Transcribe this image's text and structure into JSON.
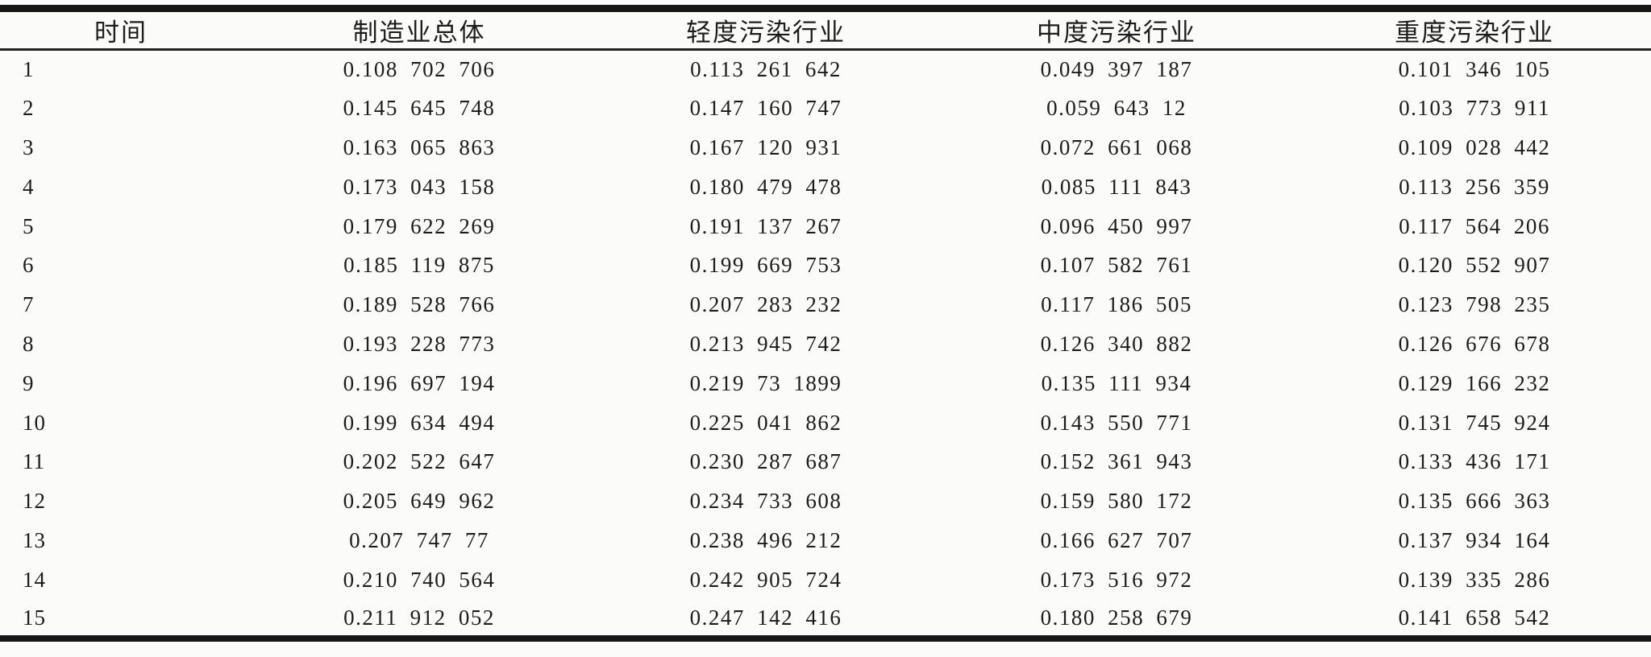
{
  "table": {
    "columns": [
      {
        "label": "时间"
      },
      {
        "label": "制造业总体"
      },
      {
        "label": "轻度污染行业"
      },
      {
        "label": "中度污染行业"
      },
      {
        "label": "重度污染行业"
      }
    ],
    "rows": [
      [
        "1",
        "0.108 702 706",
        "0.113 261 642",
        "0.049 397 187",
        "0.101 346 105"
      ],
      [
        "2",
        "0.145 645 748",
        "0.147 160 747",
        "0.059 643 12",
        "0.103 773 911"
      ],
      [
        "3",
        "0.163 065 863",
        "0.167 120 931",
        "0.072 661 068",
        "0.109 028 442"
      ],
      [
        "4",
        "0.173 043 158",
        "0.180 479 478",
        "0.085 111 843",
        "0.113 256 359"
      ],
      [
        "5",
        "0.179 622 269",
        "0.191 137 267",
        "0.096 450 997",
        "0.117 564 206"
      ],
      [
        "6",
        "0.185 119 875",
        "0.199 669 753",
        "0.107 582 761",
        "0.120 552 907"
      ],
      [
        "7",
        "0.189 528 766",
        "0.207 283 232",
        "0.117 186 505",
        "0.123 798 235"
      ],
      [
        "8",
        "0.193 228 773",
        "0.213 945 742",
        "0.126 340 882",
        "0.126 676 678"
      ],
      [
        "9",
        "0.196 697 194",
        "0.219 73 1899",
        "0.135 111 934",
        "0.129 166 232"
      ],
      [
        "10",
        "0.199 634 494",
        "0.225 041 862",
        "0.143 550 771",
        "0.131 745 924"
      ],
      [
        "11",
        "0.202 522 647",
        "0.230 287 687",
        "0.152 361 943",
        "0.133 436 171"
      ],
      [
        "12",
        "0.205 649 962",
        "0.234 733 608",
        "0.159 580 172",
        "0.135 666 363"
      ],
      [
        "13",
        "0.207 747 77",
        "0.238 496 212",
        "0.166 627 707",
        "0.137 934 164"
      ],
      [
        "14",
        "0.210 740 564",
        "0.242 905 724",
        "0.173 516 972",
        "0.139 335 286"
      ],
      [
        "15",
        "0.211 912 052",
        "0.247 142 416",
        "0.180 258 679",
        "0.141 658 542"
      ]
    ]
  },
  "chart_data": {
    "type": "table",
    "title": "",
    "xlabel": "时间",
    "categories": [
      1,
      2,
      3,
      4,
      5,
      6,
      7,
      8,
      9,
      10,
      11,
      12,
      13,
      14,
      15
    ],
    "series": [
      {
        "name": "制造业总体",
        "values": [
          0.108702706,
          0.145645748,
          0.163065863,
          0.173043158,
          0.179622269,
          0.185119875,
          0.189528766,
          0.193228773,
          0.196697194,
          0.199634494,
          0.202522647,
          0.205649962,
          0.20774777,
          0.210740564,
          0.211912052
        ]
      },
      {
        "name": "轻度污染行业",
        "values": [
          0.113261642,
          0.147160747,
          0.167120931,
          0.180479478,
          0.191137267,
          0.199669753,
          0.207283232,
          0.213945742,
          0.219731899,
          0.225041862,
          0.230287687,
          0.234733608,
          0.238496212,
          0.242905724,
          0.247142416
        ]
      },
      {
        "name": "中度污染行业",
        "values": [
          0.049397187,
          0.05964312,
          0.072661068,
          0.085111843,
          0.096450997,
          0.107582761,
          0.117186505,
          0.126340882,
          0.135111934,
          0.143550771,
          0.152361943,
          0.159580172,
          0.166627707,
          0.173516972,
          0.180258679
        ]
      },
      {
        "name": "重度污染行业",
        "values": [
          0.101346105,
          0.103773911,
          0.109028442,
          0.113256359,
          0.117564206,
          0.120552907,
          0.123798235,
          0.126676678,
          0.129166232,
          0.131745924,
          0.133436171,
          0.135666363,
          0.137934164,
          0.139335286,
          0.141658542
        ]
      }
    ],
    "legend_position": "none",
    "grid": false
  }
}
